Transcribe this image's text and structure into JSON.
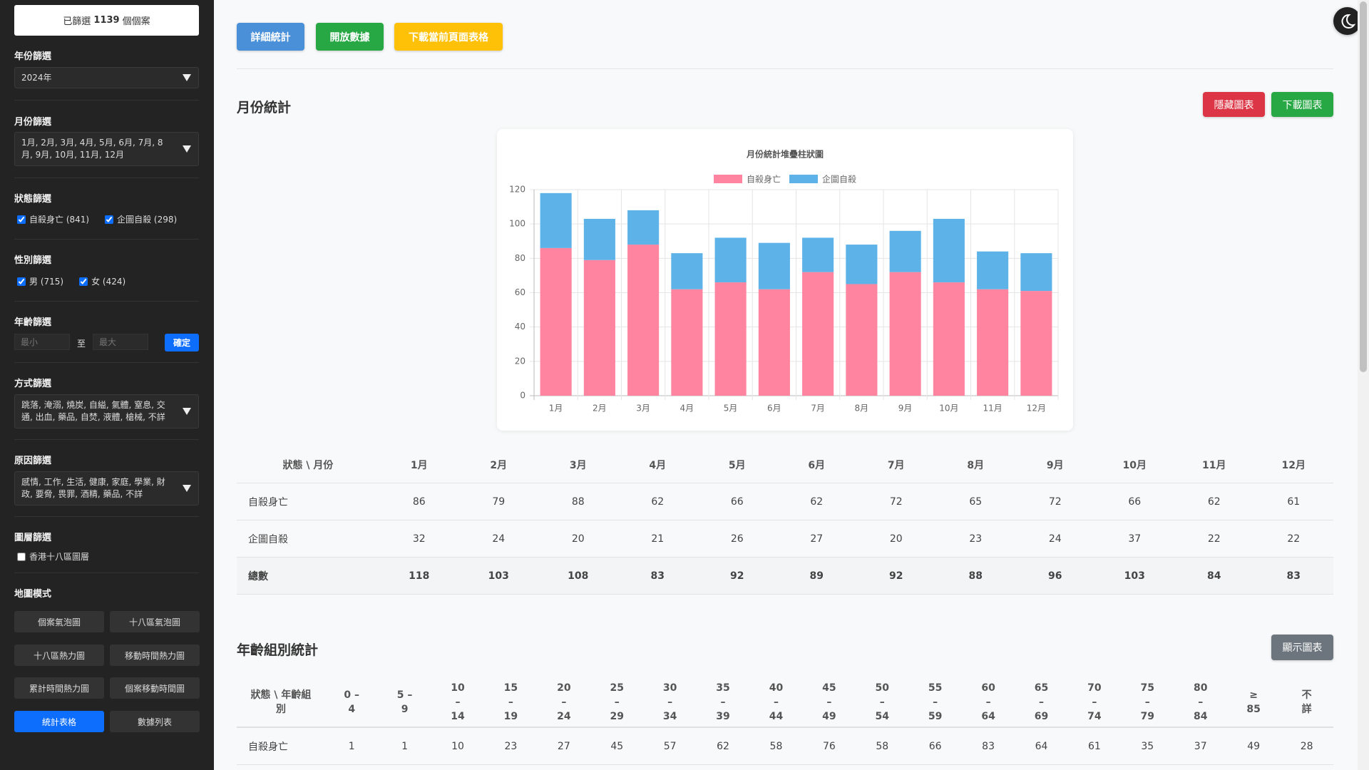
{
  "sidebar": {
    "summary": {
      "prefix": "已篩選",
      "count": 1139,
      "suffix": "個個案"
    },
    "year": {
      "label": "年份篩選",
      "value": "2024年"
    },
    "month": {
      "label": "月份篩選",
      "value": "1月, 2月, 3月, 4月, 5月, 6月, 7月, 8月, 9月, 10月, 11月, 12月"
    },
    "status": {
      "label": "狀態篩選",
      "options": [
        "自殺身亡 (841)",
        "企圖自殺 (298)"
      ],
      "checked": [
        true,
        true
      ]
    },
    "gender": {
      "label": "性別篩選",
      "options": [
        "男 (715)",
        "女 (424)"
      ],
      "checked": [
        true,
        true
      ]
    },
    "age": {
      "label": "年齡篩選",
      "min_placeholder": "最小",
      "separator": "至",
      "max_placeholder": "最大",
      "button": "確定"
    },
    "method": {
      "label": "方式篩選",
      "value": "跳落, 淹溺, 燒炭, 自縊, 氣體, 窒息, 交通, 出血, 藥品, 自焚, 液體, 槍械, 不詳"
    },
    "reason": {
      "label": "原因篩選",
      "value": "感情, 工作, 生活, 健康, 家庭, 學業, 財政, 要脅, 畏罪, 酒精, 藥品, 不詳"
    },
    "layer": {
      "label": "圖層篩選",
      "options": [
        "香港十八區圖層"
      ],
      "checked": [
        false
      ]
    },
    "map_mode": {
      "label": "地圖模式",
      "buttons": [
        "個案氣泡圖",
        "十八區氣泡圖",
        "十八區熱力圖",
        "移動時間熱力圖",
        "累計時間熱力圖",
        "個案移動時間圖",
        "統計表格",
        "數據列表"
      ],
      "active": 6
    }
  },
  "toolbar": {
    "buttons": [
      "詳細統計",
      "開放數據",
      "下載當前頁面表格"
    ]
  },
  "monthly": {
    "title": "月份統計",
    "buttons": [
      "隱藏圖表",
      "下載圖表"
    ],
    "table": {
      "corner": "狀態 \\ 月份",
      "total_label": "總數",
      "totals": [
        118,
        103,
        108,
        83,
        92,
        89,
        92,
        88,
        96,
        103,
        84,
        83
      ]
    }
  },
  "chart_data": {
    "type": "stacked_bar",
    "title": "月份統計堆疊柱狀圖",
    "categories": [
      "1月",
      "2月",
      "3月",
      "4月",
      "5月",
      "6月",
      "7月",
      "8月",
      "9月",
      "10月",
      "11月",
      "12月"
    ],
    "series": [
      {
        "name": "自殺身亡",
        "color": "#ff84a0",
        "values": [
          86,
          79,
          88,
          62,
          66,
          62,
          72,
          65,
          72,
          66,
          62,
          61
        ]
      },
      {
        "name": "企圖自殺",
        "color": "#5db2e8",
        "values": [
          32,
          24,
          20,
          21,
          26,
          27,
          20,
          23,
          24,
          37,
          22,
          22
        ]
      }
    ],
    "ylim": [
      0,
      120
    ],
    "yticks": [
      0,
      20,
      40,
      60,
      80,
      100,
      120
    ],
    "grid": true,
    "legend": "top"
  },
  "age_stats": {
    "title": "年齡組別統計",
    "button": "顯示圖表",
    "table": {
      "corner": "狀態 \\ 年齡組別",
      "columns": [
        "0 – 4",
        "5 – 9",
        "10 – 14",
        "15 – 19",
        "20 – 24",
        "25 – 29",
        "30 – 34",
        "35 – 39",
        "40 – 44",
        "45 – 49",
        "50 – 54",
        "55 – 59",
        "60 – 64",
        "65 – 69",
        "70 – 74",
        "75 – 79",
        "80 – 84",
        "≥ 85",
        "不詳"
      ],
      "rows": [
        {
          "label": "自殺身亡",
          "values": [
            1,
            1,
            10,
            23,
            27,
            45,
            57,
            62,
            58,
            76,
            58,
            66,
            83,
            64,
            61,
            35,
            37,
            49,
            28
          ]
        }
      ]
    }
  }
}
